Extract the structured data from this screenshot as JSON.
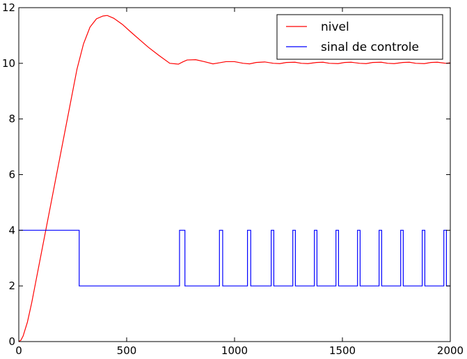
{
  "chart_data": {
    "type": "line",
    "title": "",
    "xlabel": "",
    "ylabel": "",
    "xlim": [
      0,
      2000
    ],
    "ylim": [
      0,
      12
    ],
    "xticks": [
      "0",
      "500",
      "1000",
      "1500",
      "2000"
    ],
    "yticks": [
      "0",
      "2",
      "4",
      "6",
      "8",
      "10",
      "12"
    ],
    "grid": false,
    "legend": "top-right",
    "series": [
      {
        "name": "nivel",
        "color": "#ff0000",
        "x": [
          0,
          10,
          20,
          40,
          60,
          80,
          100,
          130,
          160,
          200,
          240,
          270,
          300,
          330,
          360,
          390,
          410,
          440,
          480,
          520,
          560,
          600,
          650,
          700,
          740,
          760,
          780,
          820,
          860,
          900,
          930,
          960,
          1000,
          1040,
          1070,
          1100,
          1140,
          1180,
          1210,
          1240,
          1280,
          1310,
          1340,
          1380,
          1410,
          1440,
          1480,
          1510,
          1540,
          1580,
          1610,
          1640,
          1680,
          1710,
          1740,
          1780,
          1810,
          1840,
          1880,
          1910,
          1940,
          1980,
          2000
        ],
        "y": [
          0,
          0.05,
          0.2,
          0.7,
          1.4,
          2.2,
          3.0,
          4.2,
          5.4,
          7.0,
          8.6,
          9.8,
          10.7,
          11.3,
          11.6,
          11.7,
          11.72,
          11.62,
          11.4,
          11.12,
          10.85,
          10.58,
          10.28,
          10.0,
          9.97,
          10.05,
          10.12,
          10.13,
          10.06,
          9.98,
          10.02,
          10.06,
          10.06,
          10.0,
          9.98,
          10.03,
          10.05,
          10.0,
          9.99,
          10.03,
          10.04,
          10.0,
          9.99,
          10.03,
          10.04,
          10.0,
          9.99,
          10.03,
          10.04,
          10.0,
          9.99,
          10.03,
          10.04,
          10.0,
          9.99,
          10.03,
          10.04,
          10.0,
          9.99,
          10.03,
          10.04,
          10.0,
          10.02
        ]
      },
      {
        "name": "sinal de controle",
        "color": "#0000ff",
        "step": true,
        "x": [
          0,
          280,
          745,
          770,
          930,
          945,
          1060,
          1075,
          1170,
          1182,
          1270,
          1282,
          1370,
          1382,
          1470,
          1482,
          1570,
          1582,
          1670,
          1682,
          1770,
          1782,
          1870,
          1882,
          1970,
          1982,
          2000
        ],
        "y": [
          4,
          2,
          4,
          2,
          4,
          2,
          4,
          2,
          4,
          2,
          4,
          2,
          4,
          2,
          4,
          2,
          4,
          2,
          4,
          2,
          4,
          2,
          4,
          2,
          4,
          2,
          2
        ]
      }
    ]
  }
}
